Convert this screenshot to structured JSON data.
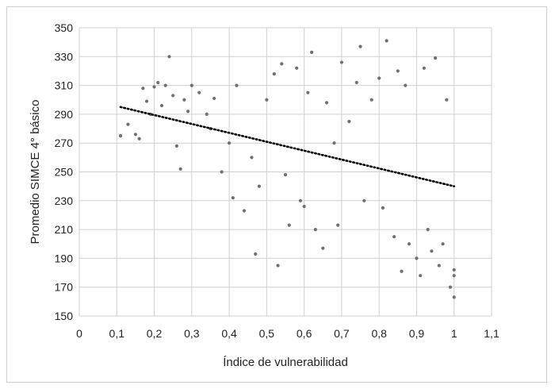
{
  "chart_data": {
    "type": "scatter",
    "title": "",
    "xlabel": "Índice de vulnerabilidad",
    "ylabel": "Promedio SIMCE 4° básico",
    "xlim": [
      0,
      1.1
    ],
    "ylim": [
      150,
      350
    ],
    "x_ticks": [
      "0",
      "0,1",
      "0,2",
      "0,3",
      "0,4",
      "0,5",
      "0,6",
      "0,7",
      "0,8",
      "0,9",
      "1",
      "1,1"
    ],
    "y_ticks": [
      "150",
      "170",
      "190",
      "210",
      "230",
      "250",
      "270",
      "290",
      "310",
      "330",
      "350"
    ],
    "grid": true,
    "legend": "none",
    "colors": {
      "points": "#6f6f6f",
      "trend": "#000000",
      "grid": "#d0d0d0"
    },
    "trendline": {
      "type": "linear",
      "style": "dotted",
      "x": [
        0.11,
        1.0
      ],
      "y": [
        295,
        240
      ]
    },
    "series": [
      {
        "points": [
          [
            0.11,
            275
          ],
          [
            0.13,
            283
          ],
          [
            0.15,
            276
          ],
          [
            0.16,
            273
          ],
          [
            0.17,
            308
          ],
          [
            0.18,
            299
          ],
          [
            0.19,
            290
          ],
          [
            0.2,
            309
          ],
          [
            0.21,
            312
          ],
          [
            0.22,
            296
          ],
          [
            0.23,
            310
          ],
          [
            0.24,
            330
          ],
          [
            0.25,
            303
          ],
          [
            0.26,
            268
          ],
          [
            0.27,
            252
          ],
          [
            0.28,
            300
          ],
          [
            0.29,
            292
          ],
          [
            0.3,
            310
          ],
          [
            0.32,
            305
          ],
          [
            0.34,
            290
          ],
          [
            0.35,
            280
          ],
          [
            0.36,
            301
          ],
          [
            0.38,
            250
          ],
          [
            0.4,
            270
          ],
          [
            0.41,
            232
          ],
          [
            0.42,
            310
          ],
          [
            0.44,
            223
          ],
          [
            0.46,
            260
          ],
          [
            0.47,
            193
          ],
          [
            0.48,
            240
          ],
          [
            0.5,
            300
          ],
          [
            0.52,
            318
          ],
          [
            0.53,
            185
          ],
          [
            0.54,
            325
          ],
          [
            0.55,
            248
          ],
          [
            0.56,
            213
          ],
          [
            0.58,
            322
          ],
          [
            0.59,
            230
          ],
          [
            0.6,
            226
          ],
          [
            0.61,
            305
          ],
          [
            0.62,
            333
          ],
          [
            0.63,
            210
          ],
          [
            0.65,
            197
          ],
          [
            0.66,
            298
          ],
          [
            0.68,
            270
          ],
          [
            0.69,
            213
          ],
          [
            0.7,
            326
          ],
          [
            0.72,
            285
          ],
          [
            0.74,
            312
          ],
          [
            0.75,
            337
          ],
          [
            0.76,
            230
          ],
          [
            0.78,
            300
          ],
          [
            0.8,
            315
          ],
          [
            0.81,
            225
          ],
          [
            0.82,
            341
          ],
          [
            0.84,
            205
          ],
          [
            0.85,
            320
          ],
          [
            0.86,
            181
          ],
          [
            0.87,
            310
          ],
          [
            0.88,
            200
          ],
          [
            0.9,
            190
          ],
          [
            0.91,
            178
          ],
          [
            0.92,
            322
          ],
          [
            0.93,
            210
          ],
          [
            0.94,
            195
          ],
          [
            0.95,
            329
          ],
          [
            0.96,
            185
          ],
          [
            0.97,
            200
          ],
          [
            0.98,
            300
          ],
          [
            0.99,
            170
          ],
          [
            1.0,
            163
          ],
          [
            1.0,
            178
          ],
          [
            1.0,
            182
          ]
        ]
      }
    ]
  }
}
